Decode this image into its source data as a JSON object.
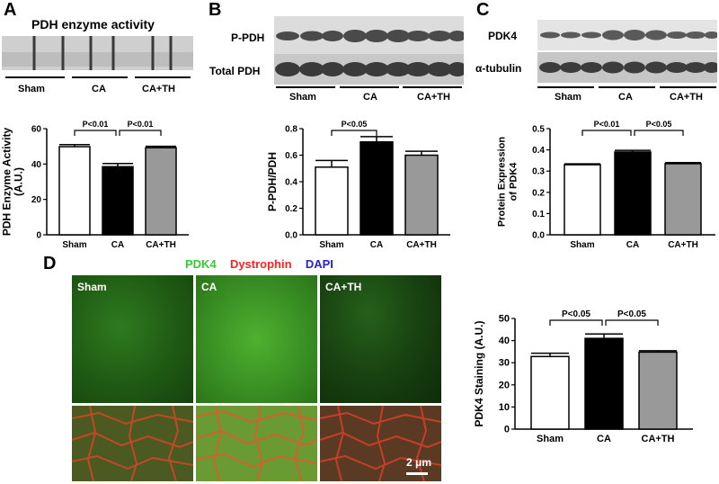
{
  "panels": {
    "A": {
      "letter": "A",
      "title": "PDH enzyme activity",
      "blot_groups": [
        "Sham",
        "CA",
        "CA+TH"
      ]
    },
    "B": {
      "letter": "B",
      "blot_rows": [
        "P-PDH",
        "Total PDH"
      ],
      "blot_groups": [
        "Sham",
        "CA",
        "CA+TH"
      ]
    },
    "C": {
      "letter": "C",
      "blot_rows": [
        "PDK4",
        "α-tubulin"
      ],
      "blot_groups": [
        "Sham",
        "CA",
        "CA+TH"
      ]
    },
    "D": {
      "letter": "D",
      "stain_legend": [
        {
          "text": "PDK4",
          "color": "#33cc33"
        },
        {
          "text": "Dystrophin",
          "color": "#ff2222"
        },
        {
          "text": "DAPI",
          "color": "#2222cc"
        }
      ],
      "micro_labels": [
        "Sham",
        "CA",
        "CA+TH"
      ],
      "scale_bar": "2 μm"
    }
  },
  "colors": {
    "sham": "#ffffff",
    "ca": "#000000",
    "cath": "#999999"
  },
  "chart_data": [
    {
      "id": "A",
      "type": "bar",
      "categories": [
        "Sham",
        "CA",
        "CA+TH"
      ],
      "values": [
        49.8,
        38.5,
        49.2
      ],
      "errors": [
        1.2,
        1.8,
        0.8
      ],
      "ylim": [
        0,
        60
      ],
      "yticks": [
        "0",
        "20",
        "40",
        "60"
      ],
      "ylabel": "PDH Enzyme Activity\n(A.U.)",
      "brackets": [
        {
          "from": 0,
          "to": 1,
          "label": "P<0.01"
        },
        {
          "from": 1,
          "to": 2,
          "label": "P<0.01"
        }
      ]
    },
    {
      "id": "B",
      "type": "bar",
      "categories": [
        "Sham",
        "CA",
        "CA+TH"
      ],
      "values": [
        0.51,
        0.7,
        0.6
      ],
      "errors": [
        0.05,
        0.04,
        0.03
      ],
      "ylim": [
        0,
        0.8
      ],
      "yticks": [
        "0.0",
        "0.2",
        "0.4",
        "0.6",
        "0.8"
      ],
      "ylabel": "P-PDH/PDH",
      "brackets": [
        {
          "from": 0,
          "to": 1,
          "label": "P<0.05"
        }
      ]
    },
    {
      "id": "C",
      "type": "bar",
      "categories": [
        "Sham",
        "CA",
        "CA+TH"
      ],
      "values": [
        0.33,
        0.39,
        0.335
      ],
      "errors": [
        0.004,
        0.008,
        0.005
      ],
      "ylim": [
        0,
        0.5
      ],
      "yticks": [
        "0.0",
        "0.1",
        "0.2",
        "0.3",
        "0.4",
        "0.5"
      ],
      "ylabel": "Protein Expression\nof PDK4",
      "brackets": [
        {
          "from": 0,
          "to": 1,
          "label": "P<0.01"
        },
        {
          "from": 1,
          "to": 2,
          "label": "P<0.05"
        }
      ]
    },
    {
      "id": "D",
      "type": "bar",
      "categories": [
        "Sham",
        "CA",
        "CA+TH"
      ],
      "values": [
        32.8,
        41.0,
        34.8
      ],
      "errors": [
        1.5,
        2.0,
        0.6
      ],
      "ylim": [
        0,
        50
      ],
      "yticks": [
        "0",
        "10",
        "20",
        "30",
        "40",
        "50"
      ],
      "ylabel": "PDK4 Staining (A.U.)",
      "brackets": [
        {
          "from": 0,
          "to": 1,
          "label": "P<0.05"
        },
        {
          "from": 1,
          "to": 2,
          "label": "P<0.05"
        }
      ]
    }
  ]
}
